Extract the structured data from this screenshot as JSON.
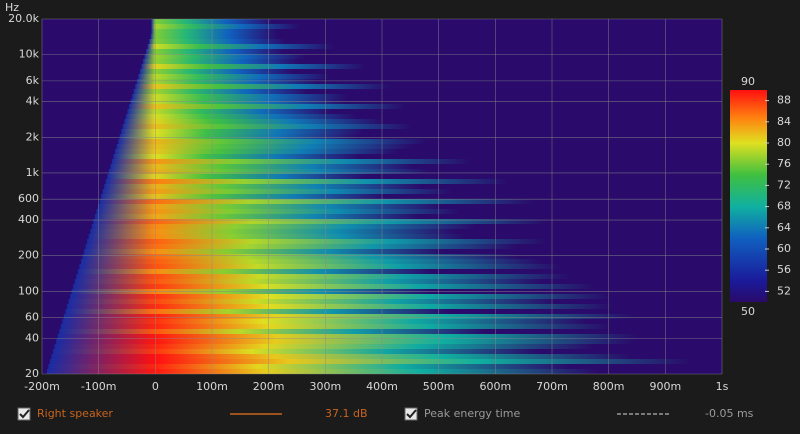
{
  "chart_data": {
    "type": "spectrogram",
    "ylabel": "Hz",
    "xlim": [
      -200,
      1000
    ],
    "xticks": [
      {
        "value": -200,
        "label": "-200m"
      },
      {
        "value": -100,
        "label": "-100m"
      },
      0,
      {
        "value": 100,
        "label": "100m"
      },
      {
        "value": 200,
        "label": "200m"
      },
      {
        "value": 300,
        "label": "300m"
      },
      {
        "value": 400,
        "label": "400m"
      },
      {
        "value": 500,
        "label": "500m"
      },
      {
        "value": 600,
        "label": "600m"
      },
      {
        "value": 700,
        "label": "700m"
      },
      {
        "value": 800,
        "label": "800m"
      },
      {
        "value": 900,
        "label": "900m"
      },
      {
        "value": 1000,
        "label": "1s"
      }
    ],
    "ylim": [
      20,
      20000
    ],
    "y_scale": "log",
    "yticks": [
      20,
      40,
      60,
      100,
      200,
      400,
      600,
      {
        "value": 1000,
        "label": "1k"
      },
      {
        "value": 2000,
        "label": "2k"
      },
      {
        "value": 4000,
        "label": "4k"
      },
      {
        "value": 6000,
        "label": "6k"
      },
      {
        "value": 10000,
        "label": "10k"
      },
      {
        "value": 20000,
        "label": "20.0k"
      }
    ],
    "grid": true,
    "colorbar": {
      "lim": [
        50,
        90
      ],
      "ticks": [
        52,
        56,
        60,
        64,
        68,
        72,
        76,
        80,
        84,
        88
      ]
    },
    "legend": [
      {
        "name": "Right speaker",
        "color": "#c8641e",
        "readout": "37.1 dB",
        "checked": true
      },
      {
        "name": "Peak energy time",
        "color": "#9a9a9a",
        "readout": "-0.05 ms",
        "checked": true
      }
    ]
  }
}
